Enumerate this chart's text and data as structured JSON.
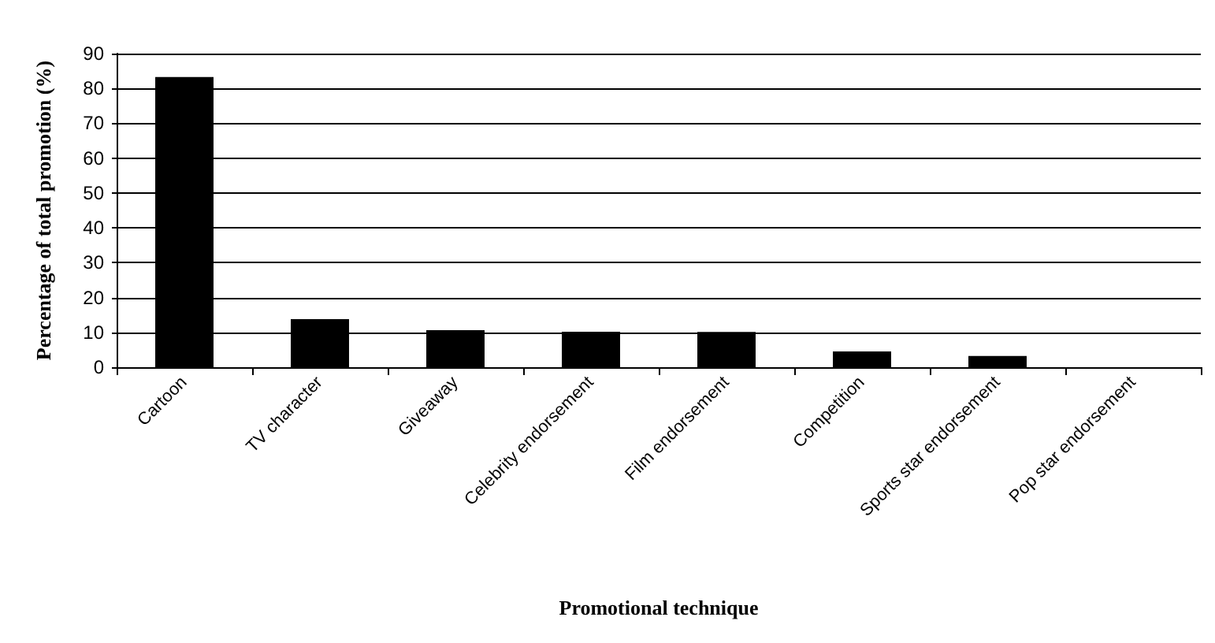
{
  "chart_data": {
    "type": "bar",
    "xlabel": "Promotional technique",
    "ylabel": "Percentage of total promotion (%)",
    "categories": [
      "Cartoon",
      "TV character",
      "Giveaway",
      "Celebrity endorsement",
      "Film endorsement",
      "Competition",
      "Sports star endorsement",
      "Pop star endorsement"
    ],
    "values": [
      83.3,
      13.8,
      10.6,
      10.2,
      10.1,
      4.5,
      3.2,
      0
    ],
    "color": "#000000",
    "ylim": [
      0,
      90
    ],
    "yticks": [
      0,
      10,
      20,
      30,
      40,
      50,
      60,
      70,
      80,
      90
    ],
    "grid": "y"
  }
}
